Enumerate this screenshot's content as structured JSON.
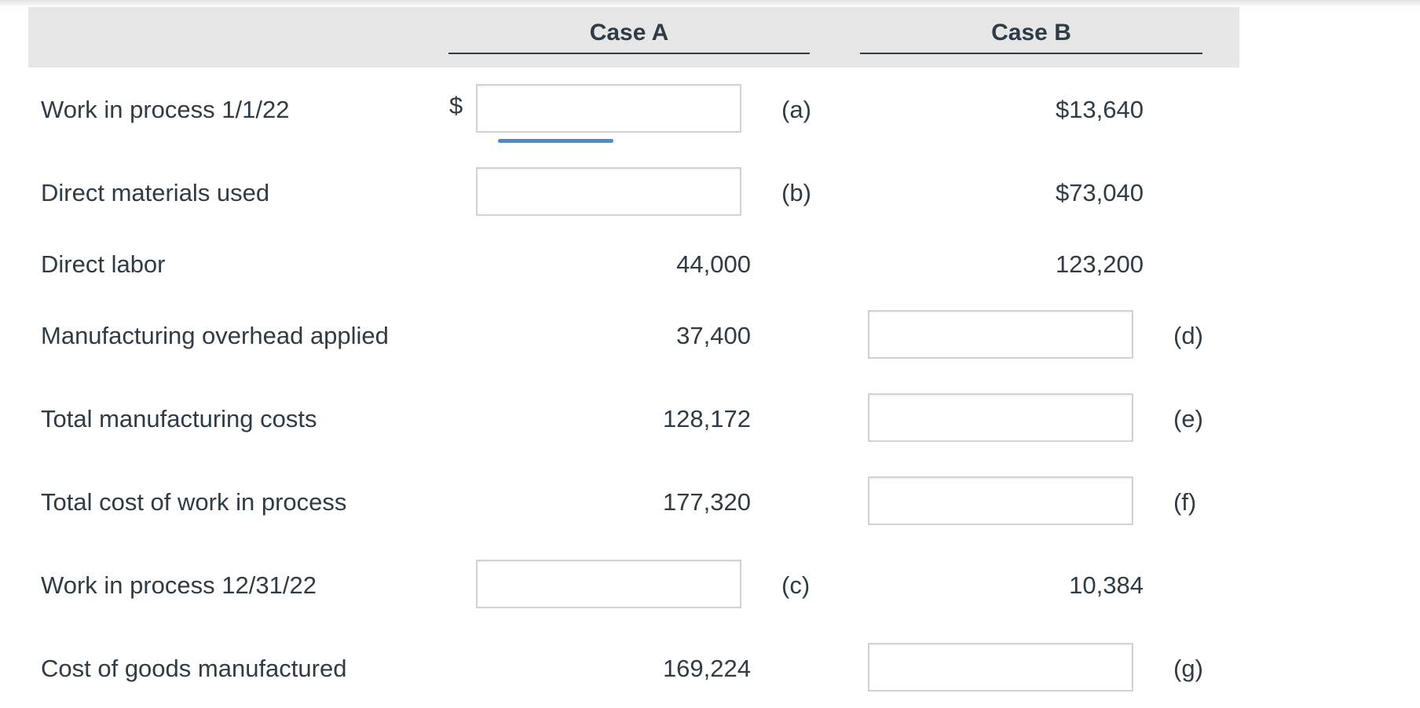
{
  "headers": {
    "case_a": "Case A",
    "case_b": "Case B"
  },
  "rows": [
    {
      "label": "Work in process 1/1/22",
      "dollar_sign": "$",
      "case_a_tag": "(a)",
      "case_b_value": "$13,640"
    },
    {
      "label": "Direct materials used",
      "case_a_tag": "(b)",
      "case_b_value": "$73,040"
    },
    {
      "label": "Direct labor",
      "case_a_value": "44,000",
      "case_b_value": "123,200"
    },
    {
      "label": "Manufacturing overhead applied",
      "case_a_value": "37,400",
      "case_b_tag": "(d)"
    },
    {
      "label": "Total manufacturing costs",
      "case_a_value": "128,172",
      "case_b_tag": "(e)"
    },
    {
      "label": "Total cost of work in process",
      "case_a_value": "177,320",
      "case_b_tag": "(f)"
    },
    {
      "label": "Work in process 12/31/22",
      "case_a_tag": "(c)",
      "case_b_value": "10,384"
    },
    {
      "label": "Cost of goods manufactured",
      "case_a_value": "169,224",
      "case_b_tag": "(g)"
    }
  ],
  "colors": {
    "text": "#2f3b45",
    "header_band": "#e6e6e6",
    "input_border": "#cfd3d6",
    "focus_accent": "#4a8cc8"
  }
}
